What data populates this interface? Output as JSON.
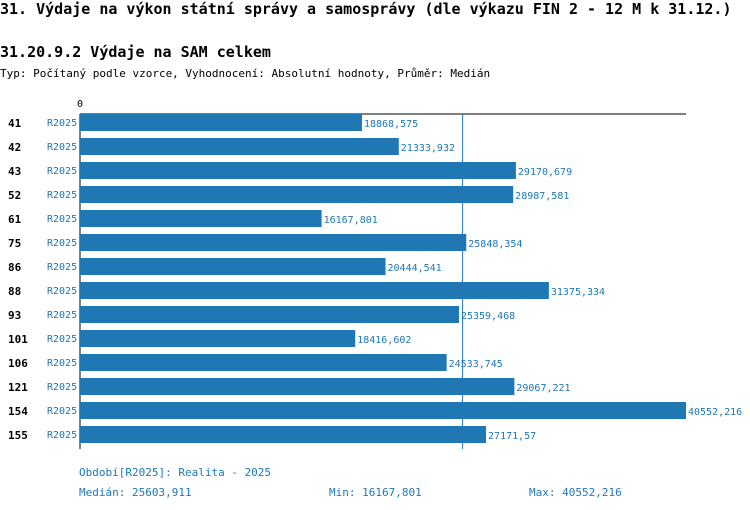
{
  "header": {
    "title": "31. Výdaje na výkon státní správy a samosprávy (dle výkazu FIN 2 - 12 M k 31.12.)",
    "subtitle": "31.20.9.2 Výdaje na SAM celkem",
    "typ": "Typ: Počítaný podle vzorce, Vyhodnocení: Absolutní hodnoty, Průměr: Medián"
  },
  "colors": {
    "bar": "#1f77b4",
    "label": "#1f77b4",
    "axis": "#000000"
  },
  "chart_data": {
    "type": "bar",
    "orientation": "horizontal",
    "axis_zero_label": "0",
    "xlim": [
      0,
      40552.216
    ],
    "reference_line": 25603.911,
    "categories": [
      "41",
      "42",
      "43",
      "52",
      "61",
      "75",
      "86",
      "88",
      "93",
      "101",
      "106",
      "121",
      "154",
      "155"
    ],
    "series": [
      {
        "name": "R2025",
        "values": [
          18868.575,
          21333.932,
          29170.679,
          28987.581,
          16167.801,
          25848.354,
          20444.541,
          31375.334,
          25359.468,
          18416.602,
          24533.745,
          29067.221,
          40552.216,
          27171.57
        ],
        "value_labels": [
          "18868,575",
          "21333,932",
          "29170,679",
          "28987,581",
          "16167,801",
          "25848,354",
          "20444,541",
          "31375,334",
          "25359,468",
          "18416,602",
          "24533,745",
          "29067,221",
          "40552,216",
          "27171,57"
        ]
      }
    ]
  },
  "footer": {
    "period": "Období[R2025]: Realita - 2025",
    "median": "Medián: 25603,911",
    "min": "Min: 16167,801",
    "max": "Max: 40552,216"
  }
}
